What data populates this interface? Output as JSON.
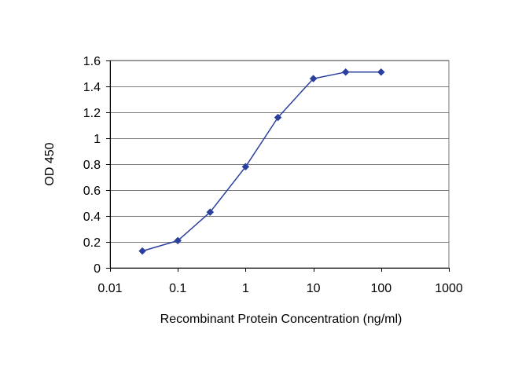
{
  "chart_data": {
    "type": "line",
    "title": "",
    "xlabel": "Recombinant Protein Concentration (ng/ml)",
    "ylabel": "OD 450",
    "x_scale": "log",
    "xlim": [
      0.01,
      1000
    ],
    "ylim": [
      0,
      1.6
    ],
    "x_ticks": [
      0.01,
      0.1,
      1,
      10,
      100,
      1000
    ],
    "x_tick_labels": [
      "0.01",
      "0.1",
      "1",
      "10",
      "100",
      "1000"
    ],
    "y_ticks": [
      0,
      0.2,
      0.4,
      0.6,
      0.8,
      1,
      1.2,
      1.4,
      1.6
    ],
    "y_tick_labels": [
      "0",
      "0.2",
      "0.4",
      "0.6",
      "0.8",
      "1",
      "1.2",
      "1.4",
      "1.6"
    ],
    "grid": "horizontal",
    "legend": "none",
    "series": [
      {
        "color": "#2b3f9e",
        "marker": "diamond",
        "x": [
          0.03,
          0.1,
          0.3,
          1,
          3,
          10,
          30,
          100
        ],
        "y": [
          0.13,
          0.21,
          0.43,
          0.78,
          1.16,
          1.46,
          1.51,
          1.51
        ]
      }
    ]
  }
}
